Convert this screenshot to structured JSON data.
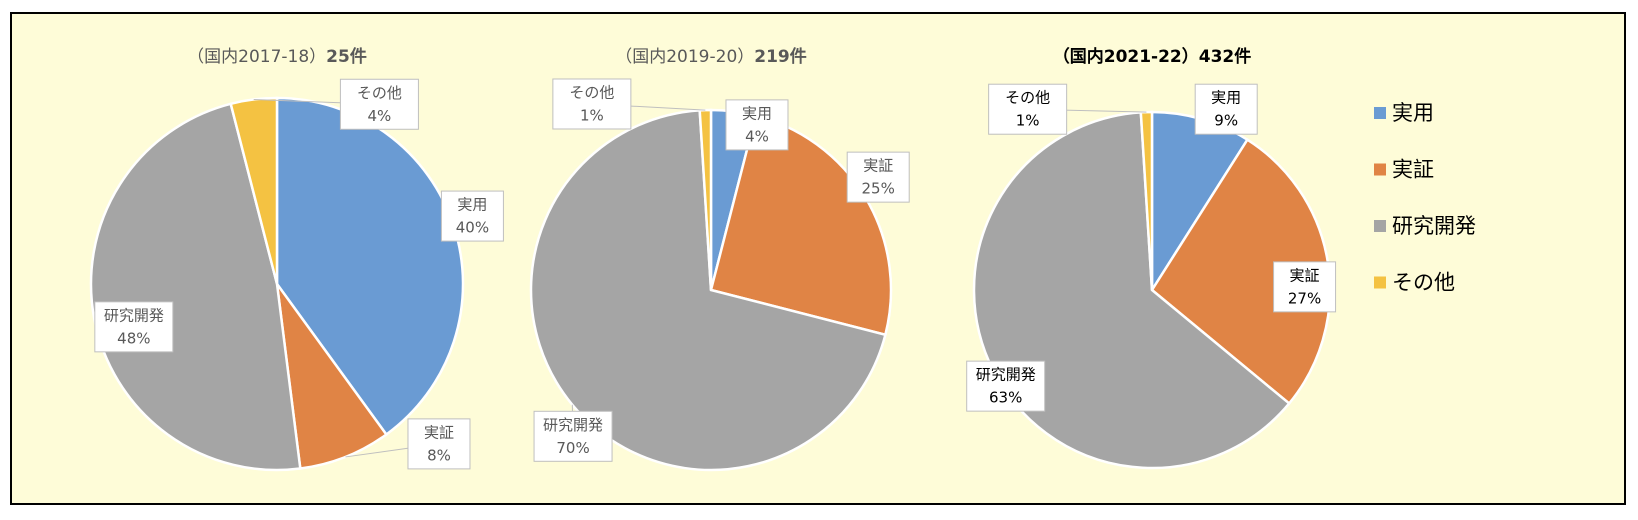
{
  "chart_data": [
    {
      "type": "pie",
      "title": "（国内2017-18）",
      "title_bold": "25件",
      "categories": [
        "実用",
        "実証",
        "研究開発",
        "その他"
      ],
      "values": [
        40,
        8,
        48,
        4
      ],
      "value_labels": [
        "40%",
        "8%",
        "48%",
        "4%"
      ],
      "colors": [
        "#6a9bd3",
        "#e08445",
        "#a5a5a5",
        "#f4c242"
      ]
    },
    {
      "type": "pie",
      "title": "（国内2019-20）",
      "title_bold": "219件",
      "categories": [
        "実用",
        "実証",
        "研究開発",
        "その他"
      ],
      "values": [
        4,
        25,
        70,
        1
      ],
      "value_labels": [
        "4%",
        "25%",
        "70%",
        "1%"
      ],
      "colors": [
        "#6a9bd3",
        "#e08445",
        "#a5a5a5",
        "#f4c242"
      ]
    },
    {
      "type": "pie",
      "title": "（国内2021-22）",
      "title_bold": "432件",
      "categories": [
        "実用",
        "実証",
        "研究開発",
        "その他"
      ],
      "values": [
        9,
        27,
        63,
        1
      ],
      "value_labels": [
        "9%",
        "27%",
        "63%",
        "1%"
      ],
      "colors": [
        "#6a9bd3",
        "#e08445",
        "#a5a5a5",
        "#f4c242"
      ],
      "legend": "right"
    }
  ]
}
